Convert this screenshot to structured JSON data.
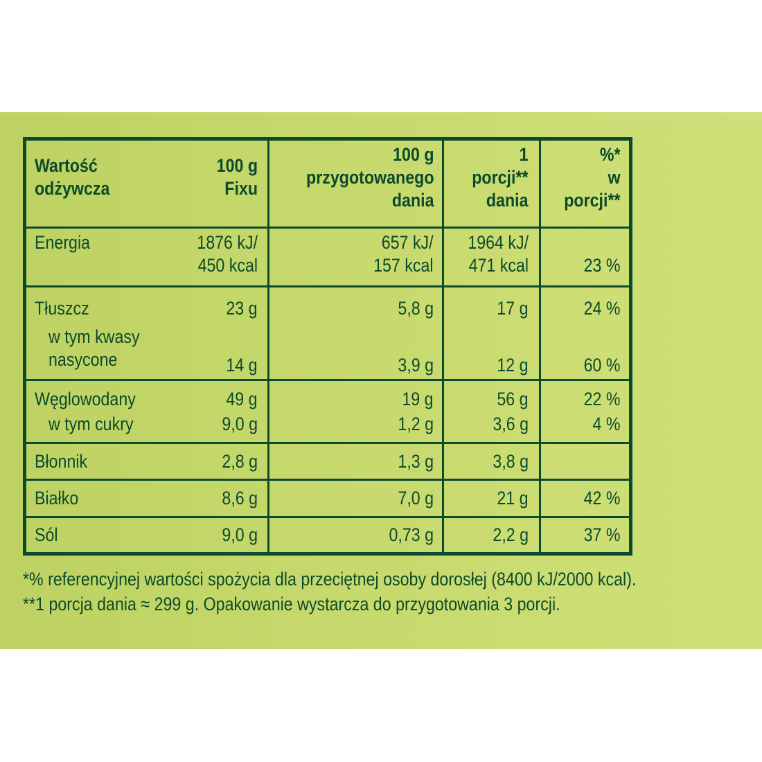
{
  "table": {
    "headers": {
      "col1": [
        "Wartość",
        "odżywcza"
      ],
      "col2": [
        "100 g",
        "Fixu"
      ],
      "col3": [
        "100 g",
        "przygotowanego",
        "dania"
      ],
      "col4": [
        "1",
        "porcji**",
        "dania"
      ],
      "col5": [
        "%*",
        "w",
        "porcji**"
      ]
    },
    "energia": {
      "label": "Energia",
      "fix_kj": "1876 kJ/",
      "fix_kcal": "450 kcal",
      "prep_kj": "657 kJ/",
      "prep_kcal": "157 kcal",
      "portion_kj": "1964 kJ/",
      "portion_kcal": "471 kcal",
      "pct": "23 %"
    },
    "tluszcz": {
      "label": "Tłuszcz",
      "fix": "23 g",
      "prep": "5,8 g",
      "portion": "17 g",
      "pct": "24 %",
      "sub_label_1": "w tym kwasy",
      "sub_label_2": "nasycone",
      "sub_fix": "14 g",
      "sub_prep": "3,9 g",
      "sub_portion": "12 g",
      "sub_pct": "60 %"
    },
    "weglowodany": {
      "label": "Węglowodany",
      "fix": "49 g",
      "prep": "19 g",
      "portion": "56 g",
      "pct": "22 %",
      "sub_label": "w tym cukry",
      "sub_fix": "9,0 g",
      "sub_prep": "1,2 g",
      "sub_portion": "3,6 g",
      "sub_pct": "4 %"
    },
    "blonnik": {
      "label": "Błonnik",
      "fix": "2,8 g",
      "prep": "1,3 g",
      "portion": "3,8 g"
    },
    "bialko": {
      "label": "Białko",
      "fix": "8,6 g",
      "prep": "7,0 g",
      "portion": "21 g",
      "pct": "42 %"
    },
    "sol": {
      "label": "Sól",
      "fix": "9,0 g",
      "prep": "0,73 g",
      "portion": "2,2 g",
      "pct": "37 %"
    }
  },
  "footnotes": {
    "line1": "*% referencyjnej wartości spożycia dla przeciętnej osoby dorosłej (8400 kJ/2000 kcal).",
    "line2": "**1 porcja dania ≈ 299 g. Opakowanie wystarcza do przygotowania 3 porcji."
  },
  "colors": {
    "background": "#c8da6e",
    "text": "#0b4a2a"
  }
}
